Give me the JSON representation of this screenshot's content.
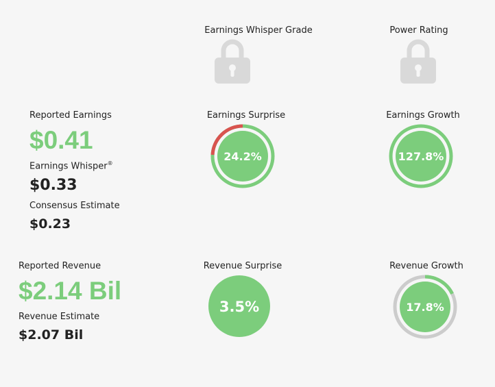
{
  "grade": {
    "label": "Earnings Whisper Grade",
    "icon": "lock-icon"
  },
  "power": {
    "label": "Power Rating",
    "icon": "lock-icon"
  },
  "earnings": {
    "reported_label": "Reported Earnings",
    "reported_value": "$0.41",
    "whisper_label": "Earnings Whisper",
    "whisper_mark": "®",
    "whisper_value": "$0.33",
    "consensus_label": "Consensus Estimate",
    "consensus_value": "$0.23"
  },
  "earnings_surprise": {
    "label": "Earnings Surprise",
    "value": "24.2%",
    "ring_fraction": 0.242,
    "ring_color": "#d9534f"
  },
  "earnings_growth": {
    "label": "Earnings Growth",
    "value": "127.8%",
    "ring_fraction": 1.0,
    "ring_color": "#7ccd7c"
  },
  "revenue": {
    "reported_label": "Reported Revenue",
    "reported_value": "$2.14 Bil",
    "estimate_label": "Revenue Estimate",
    "estimate_value": "$2.07 Bil"
  },
  "revenue_surprise": {
    "label": "Revenue Surprise",
    "value": "3.5%"
  },
  "revenue_growth": {
    "label": "Revenue Growth",
    "value": "17.8%",
    "ring_fraction": 0.178,
    "ring_color": "#7ccd7c"
  },
  "colors": {
    "green": "#7ccd7c",
    "red": "#d9534f",
    "gray": "#cccccc",
    "lock": "#d9d9d9"
  }
}
